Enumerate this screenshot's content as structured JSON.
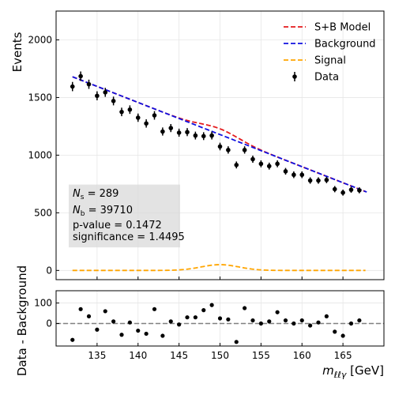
{
  "chart_data": [
    {
      "type": "scatter",
      "xlim": [
        130,
        170
      ],
      "ylim": [
        -80,
        2250
      ],
      "yticks": [
        0,
        500,
        1000,
        1500,
        2000
      ],
      "ylabel": "Events",
      "grid": true,
      "legend_placement": "top-right",
      "legend": [
        {
          "label": "S+B Model",
          "style": "dashed-line",
          "color": "#e41a1c"
        },
        {
          "label": "Background",
          "style": "dashed-line",
          "color": "#1010e0"
        },
        {
          "label": "Signal",
          "style": "dashed-line",
          "color": "#ffa500"
        },
        {
          "label": "Data",
          "style": "errorbar-point",
          "color": "#000000"
        }
      ],
      "annotation": {
        "ns_label": "N",
        "ns_sub": "s",
        "ns_value": " = 289",
        "nb_label": "N",
        "nb_sub": "b",
        "nb_value": " = 39710",
        "pvalue": "p-value = 0.1472",
        "significance": "significance = 1.4495"
      },
      "series": [
        {
          "name": "Data",
          "kind": "errorbar",
          "x": [
            132,
            133,
            134,
            135,
            136,
            137,
            138,
            139,
            140,
            141,
            142,
            143,
            144,
            145,
            146,
            147,
            148,
            149,
            150,
            151,
            152,
            153,
            154,
            155,
            156,
            157,
            158,
            159,
            160,
            161,
            162,
            163,
            164,
            165,
            166,
            167
          ],
          "y": [
            1595,
            1685,
            1615,
            1515,
            1545,
            1470,
            1375,
            1395,
            1325,
            1275,
            1345,
            1205,
            1235,
            1195,
            1200,
            1170,
            1165,
            1170,
            1075,
            1045,
            915,
            1045,
            965,
            925,
            905,
            925,
            860,
            830,
            830,
            780,
            780,
            785,
            705,
            675,
            700,
            695
          ],
          "yerr": [
            40,
            41,
            40,
            39,
            39,
            38,
            37,
            37,
            36,
            36,
            37,
            35,
            35,
            35,
            35,
            34,
            34,
            34,
            33,
            32,
            30,
            32,
            31,
            30,
            30,
            30,
            29,
            29,
            29,
            28,
            28,
            28,
            27,
            26,
            26,
            26
          ]
        },
        {
          "name": "Background",
          "kind": "dashed-line",
          "color": "#1010e0",
          "x": [
            132,
            167.9
          ],
          "y": [
            1680,
            680
          ]
        },
        {
          "name": "S+B Model",
          "kind": "dashed-line",
          "color": "#e41a1c",
          "x": [
            132,
            167.9
          ],
          "y": [
            1680,
            680
          ]
        },
        {
          "name": "Signal",
          "kind": "dashed-line",
          "color": "#ffa500",
          "x": [
            132,
            167.9
          ],
          "peak_x": 150,
          "peak_y": 50,
          "sigma": 2.3
        }
      ]
    },
    {
      "type": "scatter",
      "xlim": [
        130,
        170
      ],
      "ylim": [
        -110,
        160
      ],
      "yticks": [
        0,
        100
      ],
      "xticks": [
        135,
        140,
        145,
        150,
        155,
        160,
        165
      ],
      "ylabel": "Data - Background",
      "xlabel_main": "m",
      "xlabel_sub": "ℓℓγ",
      "xlabel_unit": " [GeV]",
      "reference_line": {
        "y": 0,
        "color": "#808080",
        "style": "dashed"
      },
      "series": [
        {
          "name": "Residuals",
          "x": [
            132,
            133,
            134,
            135,
            136,
            137,
            138,
            139,
            140,
            141,
            142,
            143,
            144,
            145,
            146,
            147,
            148,
            149,
            150,
            151,
            152,
            153,
            154,
            155,
            156,
            157,
            158,
            159,
            160,
            161,
            162,
            163,
            164,
            165,
            166,
            167
          ],
          "y": [
            -80,
            70,
            35,
            -30,
            60,
            10,
            -55,
            5,
            -35,
            -50,
            70,
            -60,
            10,
            -5,
            30,
            30,
            65,
            90,
            25,
            20,
            -90,
            75,
            15,
            0,
            10,
            55,
            15,
            0,
            15,
            -10,
            5,
            35,
            -40,
            -60,
            0,
            15
          ]
        }
      ]
    }
  ]
}
